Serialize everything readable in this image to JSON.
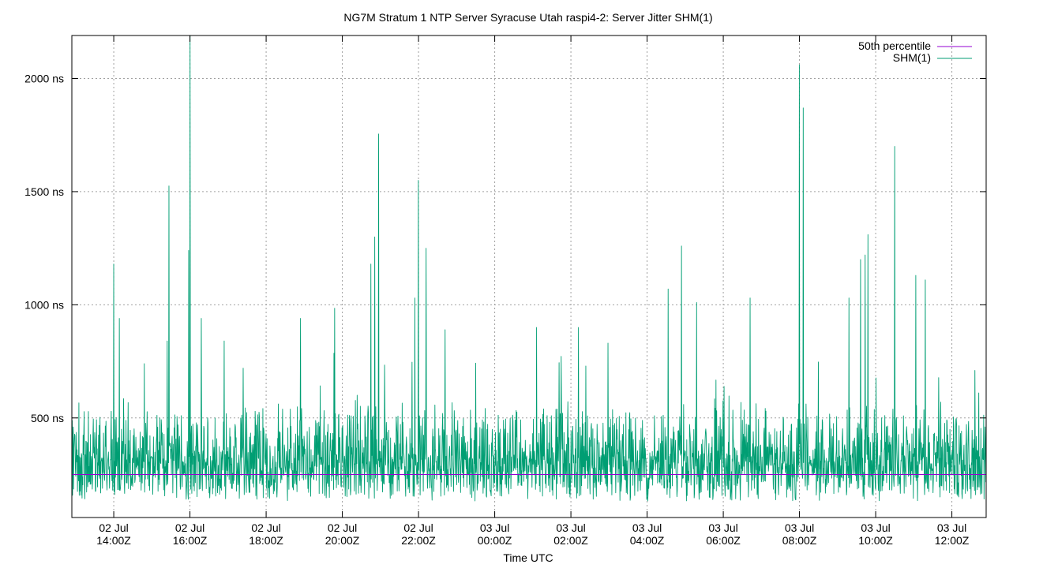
{
  "chart_data": {
    "type": "line",
    "title": "NG7M Stratum 1 NTP Server Syracuse Utah raspi4-2: Server Jitter SHM(1)",
    "xlabel": "Time UTC",
    "ylabel": "",
    "ylim": [
      60,
      2190
    ],
    "y_ticks": [
      {
        "value": 500,
        "label": "500 ns"
      },
      {
        "value": 1000,
        "label": "1000 ns"
      },
      {
        "value": 1500,
        "label": "1500 ns"
      },
      {
        "value": 2000,
        "label": "2000 ns"
      }
    ],
    "x_start_hours": 12.9,
    "x_end_hours": 36.9,
    "x_ticks": [
      {
        "hours": 14,
        "line1": "02 Jul",
        "line2": "14:00Z"
      },
      {
        "hours": 16,
        "line1": "02 Jul",
        "line2": "16:00Z"
      },
      {
        "hours": 18,
        "line1": "02 Jul",
        "line2": "18:00Z"
      },
      {
        "hours": 20,
        "line1": "02 Jul",
        "line2": "20:00Z"
      },
      {
        "hours": 22,
        "line1": "02 Jul",
        "line2": "22:00Z"
      },
      {
        "hours": 24,
        "line1": "03 Jul",
        "line2": "00:00Z"
      },
      {
        "hours": 26,
        "line1": "03 Jul",
        "line2": "02:00Z"
      },
      {
        "hours": 28,
        "line1": "03 Jul",
        "line2": "04:00Z"
      },
      {
        "hours": 30,
        "line1": "03 Jul",
        "line2": "06:00Z"
      },
      {
        "hours": 32,
        "line1": "03 Jul",
        "line2": "08:00Z"
      },
      {
        "hours": 34,
        "line1": "03 Jul",
        "line2": "10:00Z"
      },
      {
        "hours": 36,
        "line1": "03 Jul",
        "line2": "12:00Z"
      }
    ],
    "grid": true,
    "legend_position": "top-right",
    "series": [
      {
        "name": "50th percentile",
        "color": "#9400d3",
        "kind": "constant",
        "value": 250
      },
      {
        "name": "SHM(1)",
        "color": "#009e73",
        "kind": "jitter",
        "baseline": 250,
        "typical_range": [
          90,
          520
        ],
        "samples": 2600,
        "spikes": [
          {
            "hours": 14.0,
            "value": 1180
          },
          {
            "hours": 14.15,
            "value": 940
          },
          {
            "hours": 14.8,
            "value": 740
          },
          {
            "hours": 15.4,
            "value": 840
          },
          {
            "hours": 15.45,
            "value": 1525
          },
          {
            "hours": 15.97,
            "value": 1240
          },
          {
            "hours": 16.0,
            "value": 2190
          },
          {
            "hours": 16.3,
            "value": 940
          },
          {
            "hours": 16.9,
            "value": 840
          },
          {
            "hours": 17.4,
            "value": 720
          },
          {
            "hours": 18.9,
            "value": 940
          },
          {
            "hours": 19.8,
            "value": 985
          },
          {
            "hours": 20.75,
            "value": 1180
          },
          {
            "hours": 20.85,
            "value": 1300
          },
          {
            "hours": 20.95,
            "value": 1755
          },
          {
            "hours": 21.9,
            "value": 1030
          },
          {
            "hours": 22.0,
            "value": 1550
          },
          {
            "hours": 22.2,
            "value": 1250
          },
          {
            "hours": 22.7,
            "value": 890
          },
          {
            "hours": 25.1,
            "value": 900
          },
          {
            "hours": 26.2,
            "value": 900
          },
          {
            "hours": 28.55,
            "value": 1070
          },
          {
            "hours": 28.9,
            "value": 1260
          },
          {
            "hours": 29.3,
            "value": 1010
          },
          {
            "hours": 30.7,
            "value": 1030
          },
          {
            "hours": 32.0,
            "value": 2060
          },
          {
            "hours": 32.1,
            "value": 1870
          },
          {
            "hours": 33.3,
            "value": 1030
          },
          {
            "hours": 33.6,
            "value": 1200
          },
          {
            "hours": 33.72,
            "value": 1220
          },
          {
            "hours": 33.8,
            "value": 1310
          },
          {
            "hours": 34.5,
            "value": 1700
          },
          {
            "hours": 35.05,
            "value": 1130
          },
          {
            "hours": 35.3,
            "value": 1110
          },
          {
            "hours": 36.6,
            "value": 710
          }
        ]
      }
    ]
  }
}
